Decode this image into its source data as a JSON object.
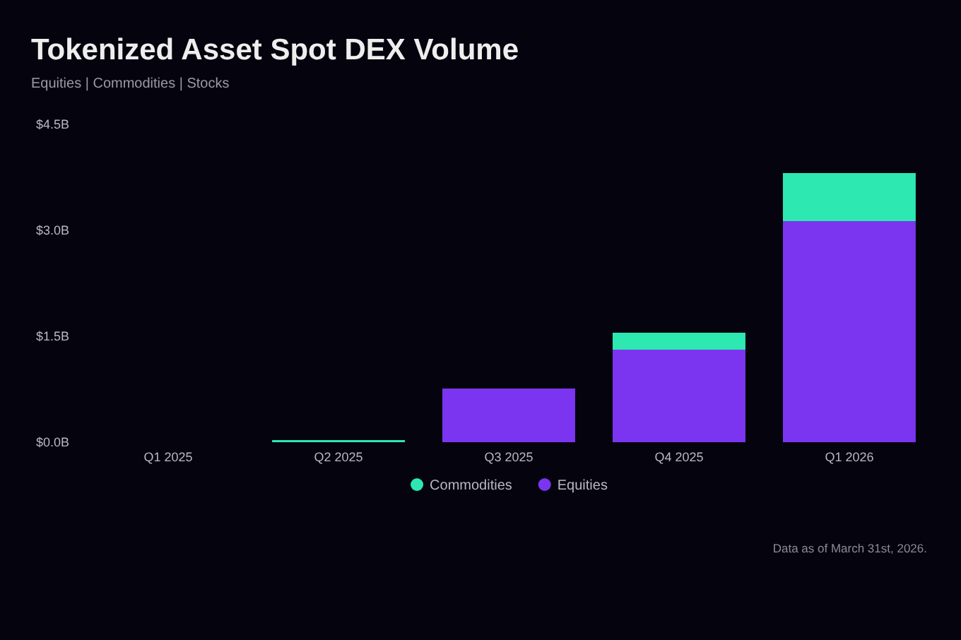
{
  "chart_data": {
    "type": "bar",
    "title": "Tokenized Asset Spot DEX Volume",
    "subtitle": "Equities | Commodities | Stocks",
    "categories": [
      "Q1 2025",
      "Q2 2025",
      "Q3 2025",
      "Q4 2025",
      "Q1 2026"
    ],
    "stacked": true,
    "series": [
      {
        "name": "Equities",
        "color": "#7b35f0",
        "values": [
          0,
          0,
          0.76,
          1.31,
          3.13
        ]
      },
      {
        "name": "Commodities",
        "color": "#2de8b0",
        "values": [
          0,
          0.03,
          0,
          0.24,
          0.68
        ]
      }
    ],
    "ylim": [
      0,
      4.5
    ],
    "yticks": [
      {
        "value": 0,
        "label": "$0.0B"
      },
      {
        "value": 1.5,
        "label": "$1.5B"
      },
      {
        "value": 3,
        "label": "$3.0B"
      },
      {
        "value": 4.5,
        "label": "$4.5B"
      }
    ],
    "grid": false,
    "legend": "bottom",
    "annotations": [
      "Data as of March 31st, 2026."
    ]
  }
}
